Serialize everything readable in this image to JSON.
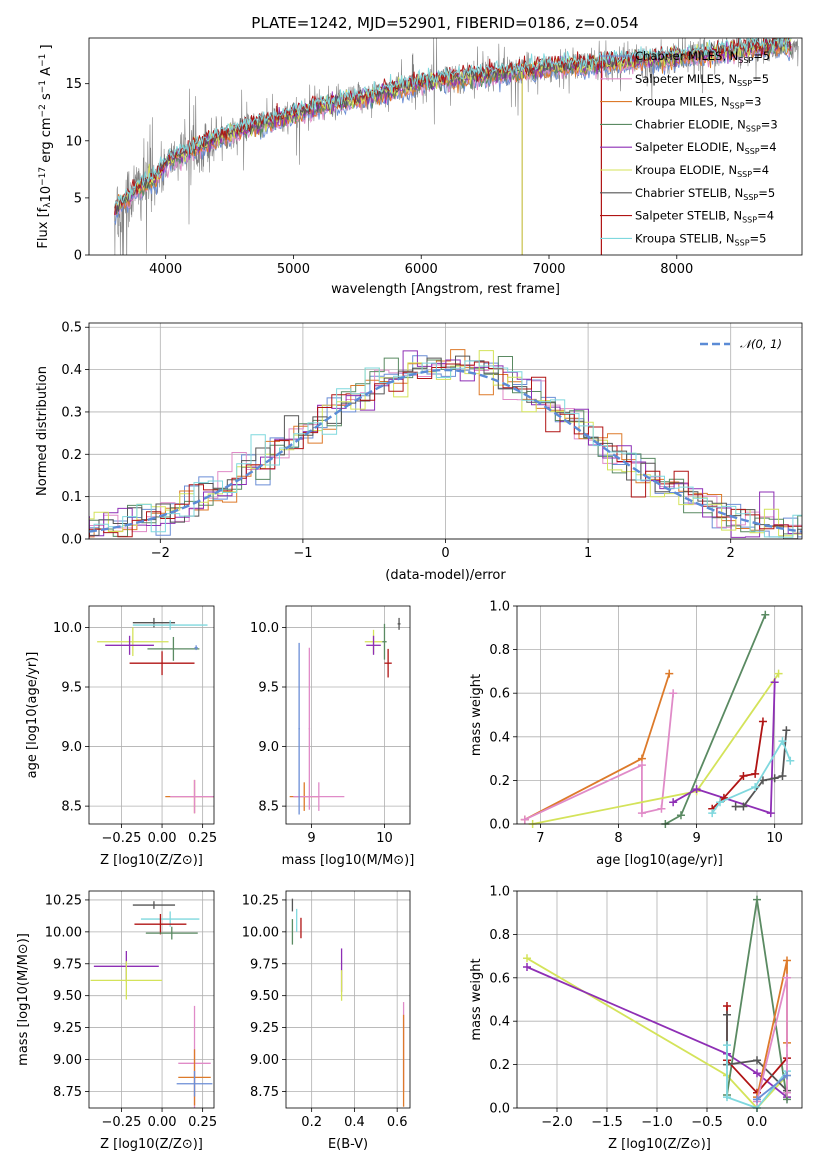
{
  "figure": {
    "title": "PLATE=1242, MJD=52901, FIBERID=0186, z=0.054"
  },
  "colors": {
    "data": "#808080",
    "Chabrier MILES": "#6b8ed6",
    "Salpeter MILES": "#e08bc8",
    "Kroupa MILES": "#dd7a2a",
    "Chabrier ELODIE": "#5a8a62",
    "Salpeter ELODIE": "#8e2fb5",
    "Kroupa ELODIE": "#d4e35a",
    "Chabrier STELIB": "#555555",
    "Salpeter STELIB": "#b01414",
    "Kroupa STELIB": "#7fd8de",
    "normal": "#5b8bd6"
  },
  "chart_data": [
    {
      "id": "spectrum",
      "type": "line",
      "xlabel": "wavelength [Angstrom, rest frame]",
      "ylabel": "Flux [f_λ10^-17 erg cm^-2 s^-1 A^-1]",
      "xlim": [
        3400,
        8980
      ],
      "ylim": [
        0,
        19
      ],
      "xticks": [
        4000,
        5000,
        6000,
        7000,
        8000
      ],
      "yticks": [
        0,
        5,
        10,
        15
      ],
      "grid": false,
      "legend_position": "top-right",
      "continuum_knots": {
        "x": [
          3600,
          3700,
          3800,
          3900,
          4000,
          4200,
          4400,
          4600,
          4800,
          5000,
          5200,
          5500,
          5800,
          6000,
          6300,
          6600,
          6800,
          7000,
          7300,
          7600,
          8000,
          8400,
          8800
        ],
        "y": [
          4.0,
          5.0,
          6.0,
          6.5,
          8.0,
          9.3,
          10.2,
          11.0,
          11.7,
          12.2,
          13.0,
          13.6,
          14.5,
          15.1,
          15.5,
          15.9,
          16.1,
          16.4,
          16.6,
          16.9,
          17.3,
          17.8,
          18.3
        ]
      },
      "series": [
        {
          "name": "Chabrier MILES",
          "n_ssp": "5"
        },
        {
          "name": "Salpeter MILES",
          "n_ssp": "5"
        },
        {
          "name": "Kroupa MILES",
          "n_ssp": "3"
        },
        {
          "name": "Chabrier ELODIE",
          "n_ssp": "3"
        },
        {
          "name": "Salpeter ELODIE",
          "n_ssp": "4"
        },
        {
          "name": "Kroupa ELODIE",
          "n_ssp": "4"
        },
        {
          "name": "Chabrier STELIB",
          "n_ssp": "5"
        },
        {
          "name": "Salpeter STELIB",
          "n_ssp": "4"
        },
        {
          "name": "Kroupa STELIB",
          "n_ssp": "5"
        }
      ]
    },
    {
      "id": "residuals",
      "type": "histogram",
      "xlabel": "(data-model)/error",
      "ylabel": "Normed distribution",
      "xlim": [
        -2.5,
        2.5
      ],
      "ylim": [
        0,
        0.51
      ],
      "xticks": [
        -2,
        -1,
        0,
        1,
        2
      ],
      "yticks": [
        0.0,
        0.1,
        0.2,
        0.3,
        0.4,
        0.5
      ],
      "grid": true,
      "legend_position": "top-right",
      "reference_curve": {
        "name": "N(0,1)",
        "mean": 0,
        "sigma": 1
      }
    },
    {
      "id": "age-vs-Z",
      "type": "errorbar",
      "xlabel": "Z [log10(Z/Z⊙)]",
      "ylabel": "age [log10(age/yr)]",
      "xlim": [
        -0.45,
        0.32
      ],
      "ylim": [
        8.35,
        10.18
      ],
      "xticks": [
        -0.25,
        0.0,
        0.25
      ],
      "yticks": [
        8.5,
        9.0,
        9.5,
        10.0
      ],
      "grid": true,
      "points": [
        {
          "series": "Chabrier STELIB",
          "x": -0.05,
          "y": 10.04,
          "xerr": 0.13,
          "yerr": 0.04
        },
        {
          "series": "Kroupa STELIB",
          "x": 0.05,
          "y": 10.02,
          "xerr": 0.23,
          "yerr": 0.04
        },
        {
          "series": "Kroupa ELODIE",
          "x": -0.18,
          "y": 9.88,
          "xerr": 0.22,
          "yerr": 0.12
        },
        {
          "series": "Salpeter ELODIE",
          "x": -0.2,
          "y": 9.85,
          "xerr": 0.15,
          "yerr": 0.08
        },
        {
          "series": "Chabrier ELODIE",
          "x": 0.07,
          "y": 9.82,
          "xerr": 0.16,
          "yerr": 0.1
        },
        {
          "series": "Salpeter STELIB",
          "x": 0.0,
          "y": 9.7,
          "xerr": 0.2,
          "yerr": 0.1
        },
        {
          "series": "Chabrier MILES",
          "x": 0.21,
          "y": 9.83,
          "xerr": 0.01,
          "yerr": 0.02
        },
        {
          "series": "Kroupa MILES",
          "x": 0.2,
          "y": 8.58,
          "xerr": 0.18,
          "yerr": 0.14
        },
        {
          "series": "Salpeter MILES",
          "x": 0.2,
          "y": 8.58,
          "xerr": 0.15,
          "yerr": 0.14
        }
      ]
    },
    {
      "id": "age-vs-mass",
      "type": "errorbar",
      "xlabel": "mass [log10(M/M⊙)]",
      "ylabel": "",
      "xlim": [
        8.65,
        10.35
      ],
      "ylim": [
        8.35,
        10.18
      ],
      "xticks": [
        9,
        10
      ],
      "yticks": [
        8.5,
        9.0,
        9.5,
        10.0
      ],
      "grid": true,
      "points": [
        {
          "series": "Chabrier STELIB",
          "x": 10.2,
          "y": 10.03,
          "xerr": 0.02,
          "yerr": 0.05
        },
        {
          "series": "Kroupa ELODIE",
          "x": 9.85,
          "y": 9.88,
          "xerr": 0.12,
          "yerr": 0.1
        },
        {
          "series": "Salpeter ELODIE",
          "x": 9.85,
          "y": 9.85,
          "xerr": 0.1,
          "yerr": 0.08
        },
        {
          "series": "Chabrier ELODIE",
          "x": 10.0,
          "y": 9.88,
          "xerr": 0.03,
          "yerr": 0.15
        },
        {
          "series": "Salpeter STELIB",
          "x": 10.05,
          "y": 9.7,
          "xerr": 0.05,
          "yerr": 0.12
        },
        {
          "series": "Kroupa MILES",
          "x": 8.9,
          "y": 8.58,
          "xerr": 0.2,
          "yerr": 0.12
        },
        {
          "series": "Salpeter MILES",
          "x": 9.1,
          "y": 8.58,
          "xerr": 0.35,
          "yerr": 0.12
        },
        {
          "series": "Chabrier MILES",
          "x": 8.83,
          "y": 9.15,
          "xerr": 0.01,
          "yerr": 0.72
        },
        {
          "series": "Salpeter MILES",
          "x": 8.97,
          "y": 9.15,
          "xerr": 0.01,
          "yerr": 0.68
        }
      ]
    },
    {
      "id": "weight-vs-age",
      "type": "line",
      "xlabel": "age [log10(age/yr)]",
      "ylabel": "mass weight",
      "xlim": [
        6.7,
        10.35
      ],
      "ylim": [
        0,
        1.0
      ],
      "xticks": [
        7,
        8,
        9,
        10
      ],
      "yticks": [
        0.0,
        0.2,
        0.4,
        0.6,
        0.8,
        1.0
      ],
      "grid": true,
      "series": [
        {
          "name": "Kroupa MILES",
          "x": [
            6.8,
            8.3,
            8.65
          ],
          "y": [
            0.02,
            0.3,
            0.69
          ]
        },
        {
          "name": "Salpeter MILES",
          "x": [
            6.8,
            8.3,
            8.3,
            8.55,
            8.7
          ],
          "y": [
            0.02,
            0.27,
            0.05,
            0.07,
            0.6
          ]
        },
        {
          "name": "Chabrier ELODIE",
          "x": [
            8.6,
            8.8,
            9.88
          ],
          "y": [
            0.0,
            0.04,
            0.96
          ]
        },
        {
          "name": "Kroupa ELODIE",
          "x": [
            6.9,
            9.0,
            10.05
          ],
          "y": [
            0.0,
            0.15,
            0.69
          ]
        },
        {
          "name": "Salpeter ELODIE",
          "x": [
            8.7,
            9.0,
            9.95,
            10.0
          ],
          "y": [
            0.1,
            0.16,
            0.05,
            0.65
          ]
        },
        {
          "name": "Salpeter STELIB",
          "x": [
            9.2,
            9.35,
            9.6,
            9.75,
            9.85
          ],
          "y": [
            0.07,
            0.12,
            0.22,
            0.23,
            0.47
          ]
        },
        {
          "name": "Chabrier STELIB",
          "x": [
            9.5,
            9.6,
            9.85,
            10.0,
            10.1,
            10.15
          ],
          "y": [
            0.08,
            0.08,
            0.2,
            0.21,
            0.22,
            0.43
          ]
        },
        {
          "name": "Kroupa STELIB",
          "x": [
            9.2,
            9.3,
            9.75,
            10.1,
            10.2
          ],
          "y": [
            0.05,
            0.1,
            0.17,
            0.38,
            0.29
          ]
        }
      ]
    },
    {
      "id": "mass-vs-Z",
      "type": "errorbar",
      "xlabel": "Z [log10(Z/Z⊙)]",
      "ylabel": "mass [log10(M/M⊙)]",
      "xlim": [
        -0.45,
        0.32
      ],
      "ylim": [
        8.62,
        10.32
      ],
      "xticks": [
        -0.25,
        0.0,
        0.25
      ],
      "yticks": [
        8.75,
        9.0,
        9.25,
        9.5,
        9.75,
        10.0,
        10.25
      ],
      "grid": true,
      "points": [
        {
          "series": "Chabrier STELIB",
          "x": -0.05,
          "y": 10.21,
          "xerr": 0.13,
          "yerr": 0.03
        },
        {
          "series": "Kroupa STELIB",
          "x": 0.05,
          "y": 10.1,
          "xerr": 0.18,
          "yerr": 0.06
        },
        {
          "series": "Salpeter STELIB",
          "x": -0.01,
          "y": 10.06,
          "xerr": 0.16,
          "yerr": 0.08
        },
        {
          "series": "Chabrier ELODIE",
          "x": 0.06,
          "y": 9.99,
          "xerr": 0.16,
          "yerr": 0.05
        },
        {
          "series": "Salpeter ELODIE",
          "x": -0.22,
          "y": 9.73,
          "xerr": 0.2,
          "yerr": 0.12
        },
        {
          "series": "Kroupa ELODIE",
          "x": -0.22,
          "y": 9.62,
          "xerr": 0.22,
          "yerr": 0.15
        },
        {
          "series": "Salpeter MILES",
          "x": 0.2,
          "y": 8.97,
          "xerr": 0.1,
          "yerr": 0.45
        },
        {
          "series": "Kroupa MILES",
          "x": 0.2,
          "y": 8.86,
          "xerr": 0.1,
          "yerr": 0.22
        },
        {
          "series": "Chabrier MILES",
          "x": 0.2,
          "y": 8.81,
          "xerr": 0.11,
          "yerr": 0.1
        }
      ]
    },
    {
      "id": "mass-vs-EBV",
      "type": "errorbar",
      "xlabel": "E(B-V)",
      "ylabel": "",
      "xlim": [
        0.08,
        0.66
      ],
      "ylim": [
        8.62,
        10.32
      ],
      "xticks": [
        0.2,
        0.4,
        0.6
      ],
      "yticks": [
        8.75,
        9.0,
        9.25,
        9.5,
        9.75,
        10.0,
        10.25
      ],
      "grid": true,
      "points": [
        {
          "series": "Chabrier STELIB",
          "x": 0.11,
          "y": 10.21,
          "xerr": 0.0,
          "yerr": 0.05
        },
        {
          "series": "Kroupa STELIB",
          "x": 0.13,
          "y": 10.09,
          "xerr": 0.0,
          "yerr": 0.09
        },
        {
          "series": "Chabrier ELODIE",
          "x": 0.11,
          "y": 10.0,
          "xerr": 0.0,
          "yerr": 0.1
        },
        {
          "series": "Salpeter STELIB",
          "x": 0.15,
          "y": 10.03,
          "xerr": 0.0,
          "yerr": 0.08
        },
        {
          "series": "Salpeter ELODIE",
          "x": 0.34,
          "y": 9.7,
          "xerr": 0.0,
          "yerr": 0.17
        },
        {
          "series": "Kroupa ELODIE",
          "x": 0.34,
          "y": 9.58,
          "xerr": 0.0,
          "yerr": 0.12
        },
        {
          "series": "Salpeter MILES",
          "x": 0.63,
          "y": 9.1,
          "xerr": 0.0,
          "yerr": 0.35
        },
        {
          "series": "Kroupa MILES",
          "x": 0.63,
          "y": 8.99,
          "xerr": 0.0,
          "yerr": 0.36
        }
      ]
    },
    {
      "id": "weight-vs-Z",
      "type": "line",
      "xlabel": "Z [log10(Z/Z⊙)]",
      "ylabel": "mass weight",
      "xlim": [
        -2.4,
        0.45
      ],
      "ylim": [
        0,
        1.0
      ],
      "xticks": [
        -2.0,
        -1.5,
        -1.0,
        -0.5,
        0.0
      ],
      "yticks": [
        0.0,
        0.2,
        0.4,
        0.6,
        0.8,
        1.0
      ],
      "grid": true,
      "series": [
        {
          "name": "Kroupa ELODIE",
          "x": [
            -2.3,
            -0.3,
            0.0,
            0.3
          ],
          "y": [
            0.69,
            0.15,
            0.0,
            0.15
          ]
        },
        {
          "name": "Salpeter ELODIE",
          "x": [
            -2.3,
            -0.3,
            0.0,
            0.3
          ],
          "y": [
            0.65,
            0.25,
            0.16,
            0.05
          ]
        },
        {
          "name": "Chabrier ELODIE",
          "x": [
            -0.3,
            0.0,
            0.3
          ],
          "y": [
            0.06,
            0.96,
            0.04
          ]
        },
        {
          "name": "Salpeter STELIB",
          "x": [
            -0.3,
            -0.3,
            0.0,
            0.3
          ],
          "y": [
            0.47,
            0.22,
            0.07,
            0.23
          ]
        },
        {
          "name": "Chabrier STELIB",
          "x": [
            -0.3,
            -0.3,
            0.0,
            0.3
          ],
          "y": [
            0.43,
            0.2,
            0.22,
            0.08
          ]
        },
        {
          "name": "Kroupa STELIB",
          "x": [
            -0.3,
            -0.3,
            0.0,
            0.3
          ],
          "y": [
            0.29,
            0.05,
            0.0,
            0.17
          ]
        },
        {
          "name": "Kroupa MILES",
          "x": [
            0.0,
            0.3,
            0.3
          ],
          "y": [
            0.05,
            0.68,
            0.3
          ]
        },
        {
          "name": "Salpeter MILES",
          "x": [
            0.0,
            0.3,
            0.3
          ],
          "y": [
            0.03,
            0.6,
            0.07
          ]
        },
        {
          "name": "Chabrier MILES",
          "x": [
            0.0,
            0.3
          ],
          "y": [
            0.04,
            0.15
          ]
        }
      ]
    }
  ]
}
